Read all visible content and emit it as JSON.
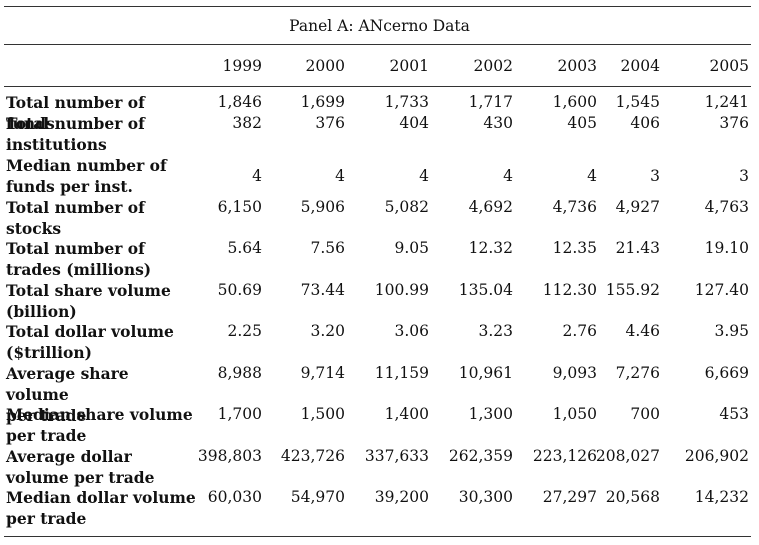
{
  "panel_title": "Panel A: ANcerno Data",
  "years": [
    "1999",
    "2000",
    "2001",
    "2002",
    "2003",
    "2004",
    "2005"
  ],
  "rows": [
    {
      "label": "Total number of funds",
      "values": [
        "1,846",
        "1,699",
        "1,733",
        "1,717",
        "1,600",
        "1,545",
        "1,241"
      ]
    },
    {
      "label": "Total number of\n   institutions",
      "values": [
        "382",
        "376",
        "404",
        "430",
        "405",
        "406",
        "376"
      ]
    },
    {
      "label": "Median number of\n   funds per inst.",
      "values": [
        "4",
        "4",
        "4",
        "4",
        "4",
        "3",
        "3"
      ]
    },
    {
      "label": "Total number of\n   stocks",
      "values": [
        "6,150",
        "5,906",
        "5,082",
        "4,692",
        "4,736",
        "4,927",
        "4,763"
      ]
    },
    {
      "label": "Total number of\n   trades (millions)",
      "values": [
        "5.64",
        "7.56",
        "9.05",
        "12.32",
        "12.35",
        "21.43",
        "19.10"
      ]
    },
    {
      "label": "Total share volume\n   (billion)",
      "values": [
        "50.69",
        "73.44",
        "100.99",
        "135.04",
        "112.30",
        "155.92",
        "127.40"
      ]
    },
    {
      "label": "Total dollar volume\n   ($trillion)",
      "values": [
        "2.25",
        "3.20",
        "3.06",
        "3.23",
        "2.76",
        "4.46",
        "3.95"
      ]
    },
    {
      "label": "Average share volume\n   per trade",
      "values": [
        "8,988",
        "9,714",
        "11,159",
        "10,961",
        "9,093",
        "7,276",
        "6,669"
      ]
    },
    {
      "label": "Median share volume\n   per trade",
      "values": [
        "1,700",
        "1,500",
        "1,400",
        "1,300",
        "1,050",
        "700",
        "453"
      ]
    },
    {
      "label": "Average dollar\n   volume per trade",
      "values": [
        "398,803",
        "423,726",
        "337,633",
        "262,359",
        "223,126",
        "208,027",
        "206,902"
      ]
    },
    {
      "label": "Median dollar volume\n   per trade",
      "values": [
        "60,030",
        "54,970",
        "39,200",
        "30,300",
        "27,297",
        "20,568",
        "14,232"
      ]
    }
  ]
}
